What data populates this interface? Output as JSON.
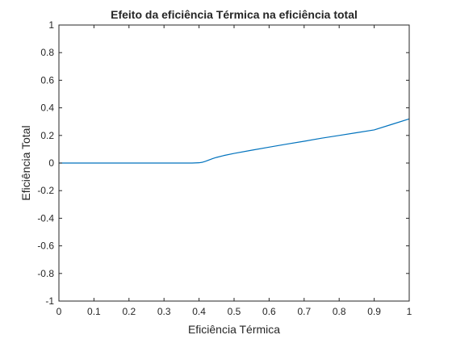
{
  "chart_data": {
    "type": "line",
    "title": "Efeito da eficiência Térmica na eficiência total",
    "xlabel": "Eficiência Térmica",
    "ylabel": "Eficiência Total",
    "xlim": [
      0,
      1
    ],
    "ylim": [
      -1,
      1
    ],
    "xticks": [
      "0",
      "0.1",
      "0.2",
      "0.3",
      "0.4",
      "0.5",
      "0.6",
      "0.7",
      "0.8",
      "0.9",
      "1"
    ],
    "yticks": [
      "-1",
      "-0.8",
      "-0.6",
      "-0.4",
      "-0.2",
      "0",
      "0.2",
      "0.4",
      "0.6",
      "0.8",
      "1"
    ],
    "grid": false,
    "legend": "none",
    "series": [
      {
        "color": "#0072BD",
        "x": [
          0,
          0.1,
          0.2,
          0.3,
          0.38,
          0.4,
          0.41,
          0.42,
          0.43,
          0.44,
          0.45,
          0.47,
          0.5,
          0.55,
          0.6,
          0.65,
          0.7,
          0.75,
          0.8,
          0.85,
          0.9,
          0.95,
          1.0
        ],
        "y": [
          0,
          0,
          0,
          0,
          0,
          0.002,
          0.006,
          0.014,
          0.024,
          0.033,
          0.041,
          0.054,
          0.07,
          0.093,
          0.115,
          0.137,
          0.158,
          0.18,
          0.2,
          0.22,
          0.24,
          0.28,
          0.32
        ]
      }
    ]
  }
}
